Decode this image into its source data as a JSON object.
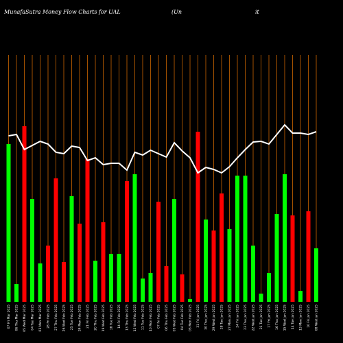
{
  "header": {
    "title_left": "MunafaSutra  Money Flow  Charts for UAL",
    "title_mid": "(Un",
    "title_right": "it"
  },
  "chart_data": {
    "type": "bar",
    "title": "MunafaSutra  Money Flow  Charts for UAL",
    "colors": {
      "up": "#00ff00",
      "down": "#ff0000",
      "line": "#ffffff",
      "grid": "#cc6600",
      "background": "#000000"
    },
    "ylim": [
      0,
      360
    ],
    "categories": [
      "07 Fri Mar 2025",
      "06 Thu Mar 2025",
      "05 Wed Mar 2025",
      "04 Tue Mar 2025",
      "03 Mon Mar 2025",
      "28 Fri Feb 2025",
      "27 Thu Feb 2025",
      "26 Wed Feb 2025",
      "25 Tue Feb 2025",
      "24 Mon Feb 2025",
      "21 Fri Feb 2025",
      "20 Thu Feb 2025",
      "19 Wed Feb 2025",
      "18 Tue Feb 2025",
      "14 Fri Feb 2025",
      "13 Thu Feb 2025",
      "12 Wed Feb 2025",
      "11 Tue Feb 2025",
      "10 Mon Feb 2025",
      "07 Fri Feb 2025",
      "06 Thu Feb 2025",
      "05 Wed Feb 2025",
      "04 Tue Feb 2025",
      "03 Mon Feb 2025",
      "31 Fri Jan 2025",
      "30 Thu Jan 2025",
      "29 Wed Jan 2025",
      "28 Tue Jan 2025",
      "27 Mon Jan 2025",
      "24 Fri Jan 2025",
      "23 Thu Jan 2025",
      "22 Wed Jan 2025",
      "21 Tue Jan 2025",
      "17 Fri Jan 2025",
      "16 Thu Jan 2025",
      "15 Wed Jan 2025",
      "14 Tue Jan 2025",
      "13 Mon Jan 2025",
      "10 Fri Jan 2025",
      "08 Wed Jan 2025"
    ],
    "values": [
      230,
      26,
      256,
      150,
      56,
      82,
      180,
      58,
      154,
      114,
      208,
      60,
      116,
      70,
      70,
      176,
      186,
      34,
      42,
      146,
      52,
      150,
      40,
      4,
      248,
      120,
      104,
      158,
      106,
      184,
      184,
      82,
      12,
      42,
      128,
      186,
      126,
      16,
      132,
      78
    ],
    "directions": [
      "up",
      "up",
      "down",
      "up",
      "up",
      "down",
      "down",
      "down",
      "up",
      "down",
      "down",
      "up",
      "down",
      "up",
      "up",
      "down",
      "up",
      "up",
      "up",
      "down",
      "down",
      "up",
      "down",
      "up",
      "down",
      "up",
      "down",
      "down",
      "up",
      "up",
      "up",
      "up",
      "up",
      "up",
      "up",
      "up",
      "down",
      "up",
      "down",
      "up"
    ],
    "line": [
      242,
      244,
      222,
      228,
      234,
      230,
      218,
      216,
      227,
      225,
      206,
      210,
      200,
      202,
      202,
      192,
      218,
      214,
      221,
      216,
      211,
      232,
      220,
      210,
      188,
      196,
      193,
      188,
      197,
      210,
      222,
      233,
      234,
      230,
      244,
      258,
      246,
      246,
      244,
      248
    ]
  }
}
